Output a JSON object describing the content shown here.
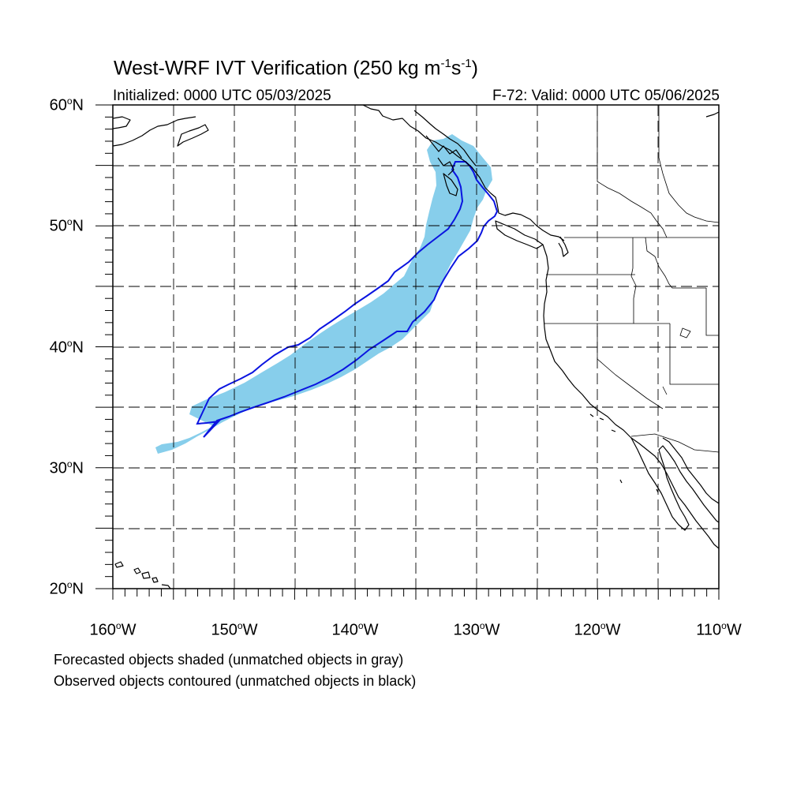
{
  "title": {
    "main": "West-WRF IVT Verification (250 kg m",
    "exp1": "-1",
    "mid": "s",
    "exp2": "-1",
    "end": ")"
  },
  "initialized": "Initialized: 0000 UTC 05/03/2025",
  "valid": "F-72: Valid: 0000 UTC 05/06/2025",
  "lat_labels": [
    "60",
    "50",
    "40",
    "30",
    "20"
  ],
  "lon_labels": [
    "160",
    "150",
    "140",
    "130",
    "120",
    "110"
  ],
  "lat_suffix": "N",
  "lon_suffix": "W",
  "degree": "o",
  "notes": [
    "Forecasted objects shaded (unmatched objects in gray)",
    "Observed objects contoured (unmatched objects in black)"
  ],
  "colors": {
    "forecast_fill": "#87ceeb",
    "observed_contour": "#0a14e0",
    "coast": "#000000",
    "grid": "#000000"
  },
  "map": {
    "lon_range": [
      -160,
      -110
    ],
    "lat_range": [
      20,
      60
    ],
    "grid_step_deg": 5
  }
}
